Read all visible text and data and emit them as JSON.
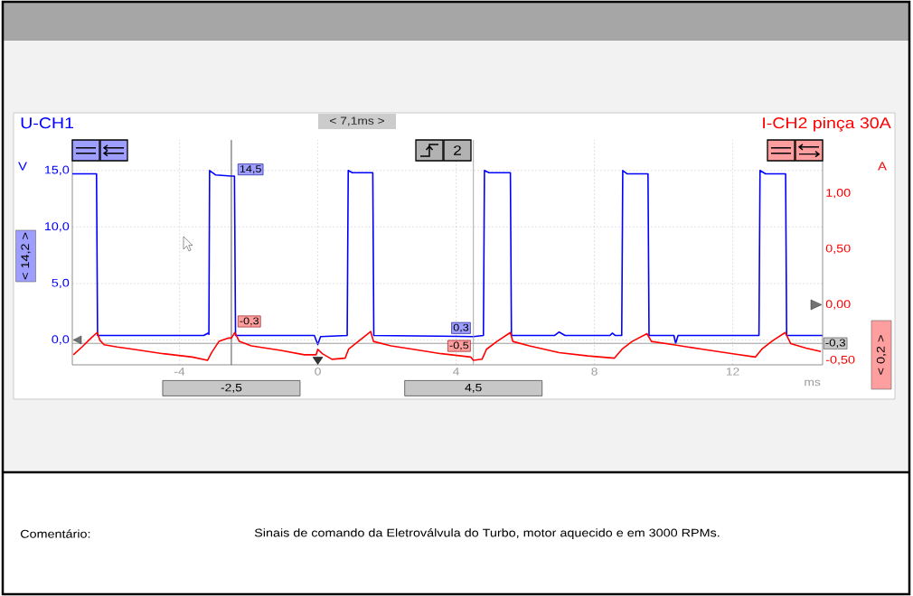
{
  "chart_data": {
    "type": "line",
    "xlabel": "ms",
    "ylabel": "V",
    "y2label": "A",
    "xlim": [
      -7.1,
      14.6
    ],
    "xticks": [
      {
        "value": -4,
        "label": "-4"
      },
      0,
      4,
      8,
      12
    ],
    "ylim": [
      -2.2,
      17.7
    ],
    "yticks": [
      {
        "value": 0,
        "label": "0,0"
      },
      {
        "value": 5,
        "label": "5,0"
      },
      {
        "value": 10,
        "label": "10,0"
      },
      {
        "value": 15,
        "label": "15,0"
      }
    ],
    "y2lim": [
      -0.54,
      1.48
    ],
    "y2ticks": [
      {
        "value": -0.5,
        "label": "-0,50"
      },
      {
        "value": 0,
        "label": "0,00"
      },
      {
        "value": 0.5,
        "label": "0,50"
      },
      {
        "value": 1,
        "label": "1,00"
      }
    ],
    "grid": true,
    "line_style": "solid",
    "series": [
      {
        "name": "U-CH1",
        "color": "#0000ff",
        "x": [
          -7.1,
          -6.4,
          -6.37,
          -3.3,
          -3.18,
          -3.15,
          -3.13,
          -2.95,
          -2.5,
          -2.41,
          -2.38,
          -0.1,
          0,
          0.08,
          0.85,
          0.88,
          1.0,
          1.59,
          1.62,
          4.5,
          4.79,
          4.82,
          4.95,
          5.57,
          5.6,
          6.85,
          6.98,
          7.15,
          8.45,
          8.52,
          8.6,
          8.79,
          8.82,
          8.95,
          9.55,
          9.58,
          10.3,
          10.35,
          10.42,
          12.76,
          12.79,
          12.95,
          13.53,
          13.56,
          14.6
        ],
        "values": [
          14.7,
          14.7,
          0.4,
          0.4,
          0.6,
          0.5,
          15.0,
          14.6,
          14.5,
          14.5,
          0.4,
          0.4,
          -0.4,
          0.3,
          0.4,
          15.0,
          14.8,
          14.8,
          0.4,
          0.3,
          0.4,
          15.0,
          14.8,
          14.8,
          0.4,
          0.4,
          0.7,
          0.4,
          0.4,
          0.6,
          0.4,
          0.4,
          15.0,
          14.7,
          14.7,
          0.4,
          0.4,
          -0.3,
          0.4,
          0.4,
          15.0,
          14.7,
          14.7,
          0.4,
          0.4
        ],
        "value_labels": [
          null,
          null,
          null,
          null,
          null,
          null,
          null,
          null,
          "14,5",
          null,
          null,
          null,
          null,
          null,
          null,
          null,
          null,
          null,
          null,
          "0,3",
          null,
          null,
          null,
          null,
          null,
          null,
          null,
          null,
          null,
          null,
          null,
          null,
          null,
          null,
          null,
          null,
          null,
          null,
          null,
          null,
          null,
          null,
          null,
          null,
          null
        ]
      },
      {
        "name": "I-CH2 pinça 30A",
        "color": "#ff0000",
        "axis": "y2",
        "x": [
          -7.07,
          -6.82,
          -6.56,
          -6.38,
          -6.3,
          -6.18,
          -5.8,
          -5.34,
          -4.47,
          -3.63,
          -3.19,
          -3.07,
          -2.86,
          -2.6,
          -2.5,
          -2.4,
          -2.27,
          -1.92,
          -1.07,
          -0.39,
          -0.05,
          0,
          0.13,
          0.41,
          0.79,
          0.89,
          1.17,
          1.53,
          1.61,
          2.12,
          2.96,
          3.57,
          4.42,
          4.5,
          4.75,
          4.88,
          5.18,
          5.57,
          5.64,
          6.12,
          6.98,
          7.81,
          8.58,
          8.8,
          9.09,
          9.52,
          9.65,
          10.29,
          11.13,
          12.0,
          12.66,
          12.84,
          13.17,
          13.52,
          13.68,
          14.12,
          14.55
        ],
        "values": [
          -0.45,
          -0.38,
          -0.3,
          -0.25,
          -0.32,
          -0.36,
          -0.38,
          -0.4,
          -0.44,
          -0.47,
          -0.5,
          -0.43,
          -0.33,
          -0.3,
          -0.3,
          -0.25,
          -0.33,
          -0.37,
          -0.41,
          -0.45,
          -0.45,
          -0.4,
          -0.44,
          -0.49,
          -0.48,
          -0.4,
          -0.33,
          -0.24,
          -0.33,
          -0.37,
          -0.41,
          -0.44,
          -0.47,
          -0.5,
          -0.49,
          -0.4,
          -0.33,
          -0.25,
          -0.33,
          -0.37,
          -0.43,
          -0.46,
          -0.48,
          -0.4,
          -0.33,
          -0.26,
          -0.33,
          -0.36,
          -0.4,
          -0.44,
          -0.47,
          -0.4,
          -0.32,
          -0.25,
          -0.35,
          -0.39,
          -0.42
        ],
        "value_labels": [
          null,
          null,
          null,
          null,
          null,
          null,
          null,
          null,
          null,
          null,
          null,
          null,
          null,
          null,
          "-0,3",
          null,
          null,
          null,
          null,
          null,
          null,
          null,
          null,
          null,
          null,
          null,
          null,
          null,
          null,
          null,
          null,
          null,
          null,
          "-0,5",
          null,
          null,
          null,
          null,
          null,
          null,
          null,
          null,
          null,
          null,
          null,
          null,
          null,
          null,
          null,
          null,
          null,
          null,
          null,
          null,
          null,
          null,
          null
        ]
      }
    ],
    "ref_lines": [
      {
        "axis": "x",
        "value": -2.5,
        "label": "-2,5",
        "color": "#404040"
      },
      {
        "axis": "x",
        "value": 4.5,
        "label": "4,5",
        "color": "#a0a0a0"
      },
      {
        "axis": "y",
        "value": -0.3,
        "label": "-0,3",
        "color": "#909090"
      }
    ],
    "annotations": [
      "< 7,1ms >",
      "< 14,2 >",
      "< 0,2 >",
      "2",
      "Comentário:",
      "Sinais de comando da Eletroválvula do Turbo, motor aquecido e em 3000 RPMs."
    ]
  }
}
